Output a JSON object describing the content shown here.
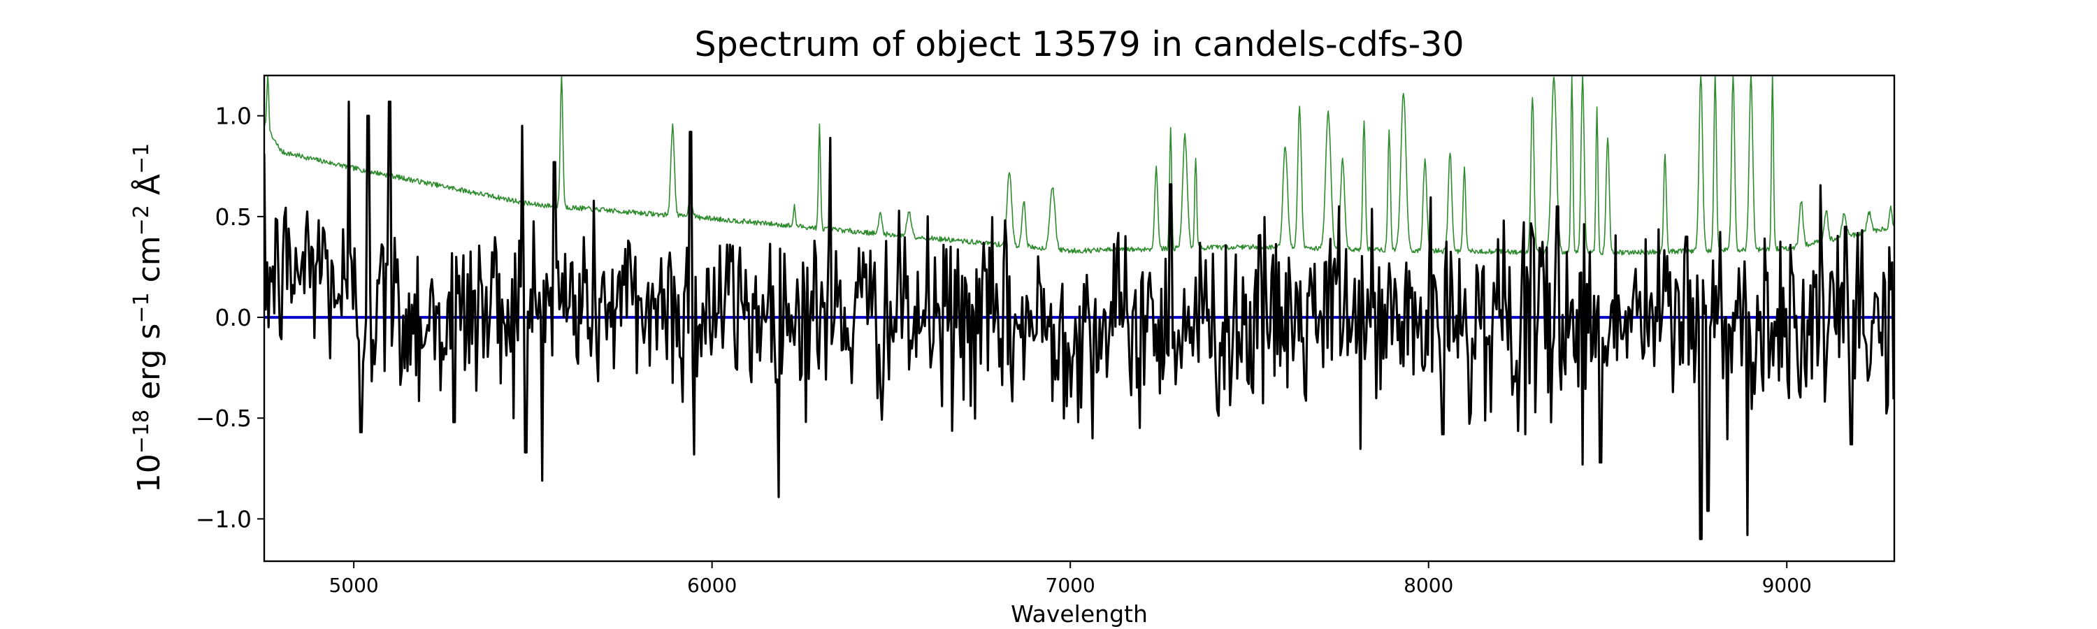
{
  "chart_data": {
    "type": "line",
    "title": "Spectrum of object 13579 in candels-cdfs-30",
    "xlabel": "Wavelength",
    "ylabel": {
      "base": "10",
      "exp1": "−18",
      "unit_a": " erg s",
      "exp2": "−1",
      "unit_b": " cm",
      "exp3": "−2",
      "unit_c": " Å",
      "exp4": "−1"
    },
    "xlim": [
      4750,
      9300
    ],
    "ylim": [
      -1.21,
      1.2
    ],
    "grid": false,
    "x_ticks": [
      5000,
      6000,
      7000,
      8000,
      9000
    ],
    "x_tick_labels": [
      "5000",
      "6000",
      "7000",
      "8000",
      "9000"
    ],
    "y_ticks": [
      -1.0,
      -0.5,
      0.0,
      0.5,
      1.0
    ],
    "y_tick_labels": [
      "−1.0",
      "−0.5",
      "0.0",
      "0.5",
      "1.0"
    ],
    "series": [
      {
        "role": "noise",
        "color": "#2e8b2e",
        "continuum": [
          [
            4750,
            0.95
          ],
          [
            4800,
            0.82
          ],
          [
            5000,
            0.74
          ],
          [
            5500,
            0.56
          ],
          [
            6000,
            0.49
          ],
          [
            6500,
            0.41
          ],
          [
            7000,
            0.33
          ],
          [
            7500,
            0.35
          ],
          [
            8000,
            0.33
          ],
          [
            8500,
            0.32
          ],
          [
            9000,
            0.34
          ],
          [
            9300,
            0.45
          ]
        ],
        "spikes": [
          [
            4760,
            1.2
          ],
          [
            5580,
            1.2
          ],
          [
            5890,
            0.95
          ],
          [
            5940,
            0.58
          ],
          [
            6230,
            0.55
          ],
          [
            6300,
            0.95
          ],
          [
            6470,
            0.52
          ],
          [
            6550,
            0.52
          ],
          [
            6830,
            0.72
          ],
          [
            6870,
            0.58
          ],
          [
            6950,
            0.65
          ],
          [
            7240,
            0.75
          ],
          [
            7280,
            0.95
          ],
          [
            7320,
            0.9
          ],
          [
            7350,
            0.8
          ],
          [
            7600,
            0.85
          ],
          [
            7640,
            1.05
          ],
          [
            7720,
            1.02
          ],
          [
            7760,
            0.78
          ],
          [
            7820,
            0.98
          ],
          [
            7890,
            0.92
          ],
          [
            7930,
            1.12
          ],
          [
            7990,
            0.78
          ],
          [
            8060,
            0.82
          ],
          [
            8100,
            0.75
          ],
          [
            8290,
            1.1
          ],
          [
            8350,
            1.2
          ],
          [
            8400,
            1.2
          ],
          [
            8430,
            1.2
          ],
          [
            8470,
            1.05
          ],
          [
            8500,
            0.9
          ],
          [
            8660,
            0.82
          ],
          [
            8760,
            1.2
          ],
          [
            8800,
            1.2
          ],
          [
            8850,
            1.2
          ],
          [
            8900,
            1.2
          ],
          [
            8960,
            1.2
          ],
          [
            9040,
            0.58
          ],
          [
            9110,
            0.53
          ],
          [
            9160,
            0.52
          ],
          [
            9230,
            0.52
          ],
          [
            9290,
            0.55
          ]
        ]
      },
      {
        "role": "model",
        "color": "#0000cc",
        "points": [
          [
            4750,
            0.0
          ],
          [
            9300,
            0.0
          ]
        ]
      },
      {
        "role": "flux",
        "color": "#000000",
        "step": 4,
        "anchors": [
          [
            4800,
            0.2
          ],
          [
            4900,
            0.28
          ],
          [
            5000,
            0.05
          ],
          [
            5200,
            0.0
          ],
          [
            5500,
            0.08
          ],
          [
            6000,
            0.05
          ],
          [
            6500,
            0.0
          ],
          [
            7000,
            -0.05
          ],
          [
            7500,
            -0.02
          ],
          [
            8000,
            -0.02
          ],
          [
            8500,
            0.0
          ],
          [
            9000,
            0.0
          ],
          [
            9300,
            -0.02
          ]
        ],
        "amplitude": 0.22,
        "extremes": [
          [
            4985,
            1.07
          ],
          [
            5040,
            1.0
          ],
          [
            5100,
            1.07
          ],
          [
            5470,
            0.95
          ],
          [
            5560,
            0.77
          ],
          [
            5940,
            0.92
          ],
          [
            6330,
            0.89
          ],
          [
            7280,
            0.66
          ],
          [
            7750,
            0.55
          ],
          [
            8210,
            0.48
          ],
          [
            8360,
            0.55
          ],
          [
            8720,
            0.4
          ],
          [
            5020,
            -0.57
          ],
          [
            5480,
            -0.67
          ],
          [
            5280,
            -0.52
          ],
          [
            5950,
            -0.68
          ],
          [
            8430,
            -0.73
          ],
          [
            8480,
            -0.72
          ],
          [
            8760,
            -1.1
          ],
          [
            8780,
            -0.96
          ],
          [
            8890,
            -1.08
          ],
          [
            8270,
            -0.58
          ],
          [
            8040,
            -0.58
          ],
          [
            9180,
            -0.63
          ]
        ]
      }
    ]
  }
}
